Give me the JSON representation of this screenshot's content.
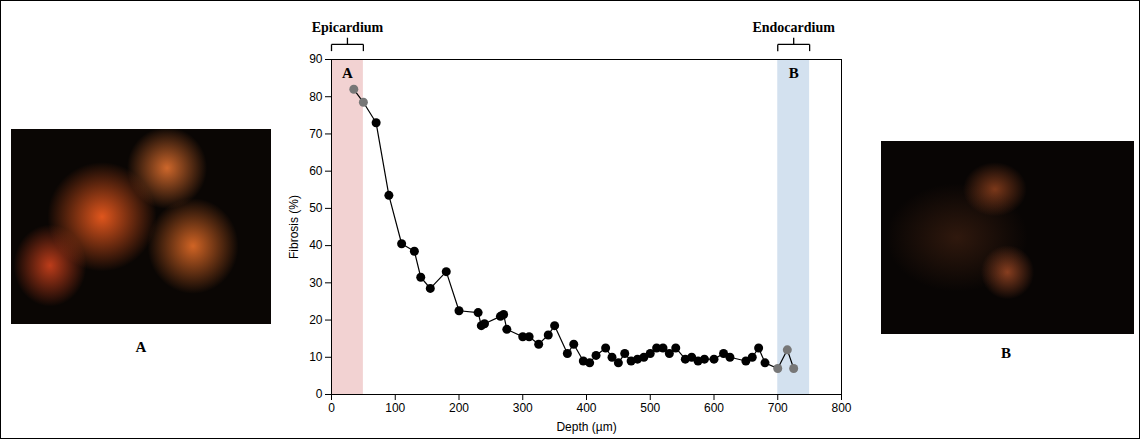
{
  "chart_data": {
    "type": "line",
    "x_label": "Depth (µm)",
    "y_label": "Fibrosis (%)",
    "x": [
      35,
      50,
      70,
      90,
      110,
      130,
      140,
      155,
      180,
      200,
      230,
      235,
      240,
      265,
      270,
      275,
      300,
      310,
      325,
      340,
      350,
      370,
      380,
      395,
      405,
      415,
      430,
      440,
      450,
      460,
      470,
      480,
      490,
      500,
      510,
      520,
      530,
      540,
      555,
      565,
      575,
      585,
      600,
      615,
      625,
      650,
      660,
      670,
      680,
      700,
      715,
      725
    ],
    "values": [
      82,
      78.5,
      73,
      53.5,
      40.5,
      38.5,
      31.5,
      28.5,
      33,
      22.5,
      22,
      18.5,
      19,
      21,
      21.5,
      17.5,
      15.5,
      15.5,
      13.5,
      16,
      18.5,
      11,
      13.5,
      9,
      8.5,
      10.5,
      12.5,
      10,
      8.5,
      11,
      9,
      9.5,
      10,
      11,
      12.5,
      12.5,
      11,
      12.5,
      9.5,
      10,
      9,
      9.5,
      9.5,
      11,
      10,
      9,
      10,
      12.5,
      8.5,
      7,
      12,
      7
    ],
    "color": "#000000",
    "colors": [
      "#777777",
      "#777777",
      "#000000",
      "#000000",
      "#000000",
      "#000000",
      "#000000",
      "#000000",
      "#000000",
      "#000000",
      "#000000",
      "#000000",
      "#000000",
      "#000000",
      "#000000",
      "#000000",
      "#000000",
      "#000000",
      "#000000",
      "#000000",
      "#000000",
      "#000000",
      "#000000",
      "#000000",
      "#000000",
      "#000000",
      "#000000",
      "#000000",
      "#000000",
      "#000000",
      "#000000",
      "#000000",
      "#000000",
      "#000000",
      "#000000",
      "#000000",
      "#000000",
      "#000000",
      "#000000",
      "#000000",
      "#000000",
      "#000000",
      "#000000",
      "#000000",
      "#000000",
      "#000000",
      "#000000",
      "#000000",
      "#000000",
      "#777777",
      "#777777",
      "#777777"
    ],
    "marker": "circle",
    "xlim": [
      0,
      800
    ],
    "xticks": [
      0,
      100,
      200,
      300,
      400,
      500,
      600,
      700,
      800
    ],
    "ylim": [
      0,
      90
    ],
    "yticks": [
      0,
      10,
      20,
      30,
      40,
      50,
      60,
      70,
      80,
      90
    ],
    "grid": false,
    "regions": [
      {
        "name": "Epicardium",
        "label": "A",
        "x": [
          0,
          50
        ],
        "color": "#f2d2d2"
      },
      {
        "name": "Endocardium",
        "label": "B",
        "x": [
          700,
          750
        ],
        "color": "#d3e1ef"
      }
    ]
  },
  "images": [
    {
      "caption": "A"
    },
    {
      "caption": "B"
    }
  ]
}
